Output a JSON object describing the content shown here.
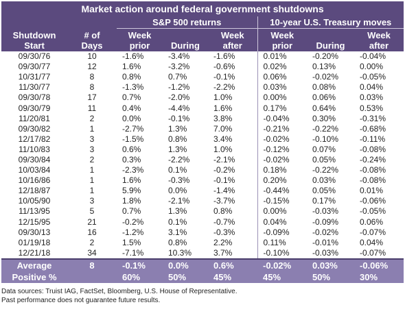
{
  "title": "Market action around federal government shutdowns",
  "group_headers": {
    "sp500": "S&P 500 returns",
    "treasury": "10-year U.S. Treasury moves"
  },
  "columns": {
    "shutdown_start": [
      "Shutdown",
      "Start"
    ],
    "days": [
      "# of",
      "Days"
    ],
    "sp_week_prior": [
      "Week",
      "prior"
    ],
    "sp_during": [
      "During"
    ],
    "sp_week_after": [
      "Week",
      "after"
    ],
    "ty_week_prior": [
      "Week",
      "prior"
    ],
    "ty_during": [
      "During"
    ],
    "ty_week_after": [
      "Week",
      "after"
    ]
  },
  "rows": [
    [
      "09/30/76",
      "10",
      "-1.6%",
      "-3.4%",
      "-1.6%",
      "0.01%",
      "-0.20%",
      "-0.04%"
    ],
    [
      "09/30/77",
      "12",
      "1.6%",
      "-3.2%",
      "-0.6%",
      "0.02%",
      "0.13%",
      "0.00%"
    ],
    [
      "10/31/77",
      "8",
      "0.8%",
      "0.7%",
      "-0.1%",
      "0.06%",
      "-0.02%",
      "-0.05%"
    ],
    [
      "11/30/77",
      "8",
      "-1.3%",
      "-1.2%",
      "-2.2%",
      "0.03%",
      "0.08%",
      "0.04%"
    ],
    [
      "09/30/78",
      "17",
      "0.7%",
      "-2.0%",
      "1.0%",
      "0.00%",
      "0.06%",
      "0.03%"
    ],
    [
      "09/30/79",
      "11",
      "0.4%",
      "-4.4%",
      "1.6%",
      "0.17%",
      "0.64%",
      "0.53%"
    ],
    [
      "11/20/81",
      "2",
      "0.0%",
      "-0.1%",
      "3.8%",
      "-0.04%",
      "0.30%",
      "-0.31%"
    ],
    [
      "09/30/82",
      "1",
      "-2.7%",
      "1.3%",
      "7.0%",
      "-0.21%",
      "-0.22%",
      "-0.68%"
    ],
    [
      "12/17/82",
      "3",
      "-1.5%",
      "0.8%",
      "3.4%",
      "-0.02%",
      "-0.10%",
      "-0.11%"
    ],
    [
      "11/10/83",
      "3",
      "0.6%",
      "1.3%",
      "1.0%",
      "-0.12%",
      "0.07%",
      "-0.08%"
    ],
    [
      "09/30/84",
      "2",
      "0.3%",
      "-2.2%",
      "-2.1%",
      "-0.02%",
      "0.05%",
      "-0.24%"
    ],
    [
      "10/03/84",
      "1",
      "-2.3%",
      "0.1%",
      "-0.2%",
      "0.18%",
      "-0.22%",
      "-0.08%"
    ],
    [
      "10/16/86",
      "1",
      "1.6%",
      "-0.3%",
      "-0.1%",
      "0.20%",
      "0.03%",
      "-0.08%"
    ],
    [
      "12/18/87",
      "1",
      "5.9%",
      "0.0%",
      "-1.4%",
      "-0.44%",
      "0.05%",
      "0.01%"
    ],
    [
      "10/05/90",
      "3",
      "1.8%",
      "-2.1%",
      "-3.7%",
      "-0.15%",
      "0.17%",
      "-0.06%"
    ],
    [
      "11/13/95",
      "5",
      "0.7%",
      "1.3%",
      "0.8%",
      "0.00%",
      "-0.03%",
      "-0.05%"
    ],
    [
      "12/15/95",
      "21",
      "-0.2%",
      "0.1%",
      "-0.7%",
      "0.04%",
      "-0.09%",
      "0.06%"
    ],
    [
      "09/30/13",
      "16",
      "-1.2%",
      "3.1%",
      "-0.3%",
      "-0.09%",
      "-0.02%",
      "-0.07%"
    ],
    [
      "01/19/18",
      "2",
      "1.5%",
      "0.8%",
      "2.2%",
      "0.11%",
      "-0.01%",
      "0.04%"
    ],
    [
      "12/21/18",
      "34",
      "-7.1%",
      "10.3%",
      "3.7%",
      "-0.10%",
      "-0.03%",
      "-0.07%"
    ]
  ],
  "summary": [
    [
      "Average",
      "8",
      "-0.1%",
      "0.0%",
      "0.6%",
      "-0.02%",
      "0.03%",
      "-0.06%"
    ],
    [
      "Positive %",
      "",
      "60%",
      "50%",
      "45%",
      "45%",
      "50%",
      "30%"
    ]
  ],
  "footnotes": [
    "Data sources: Truist IAG, FactSet, Bloomberg, U.S. House of Representative.",
    "Past performance does not guarantee future results."
  ]
}
